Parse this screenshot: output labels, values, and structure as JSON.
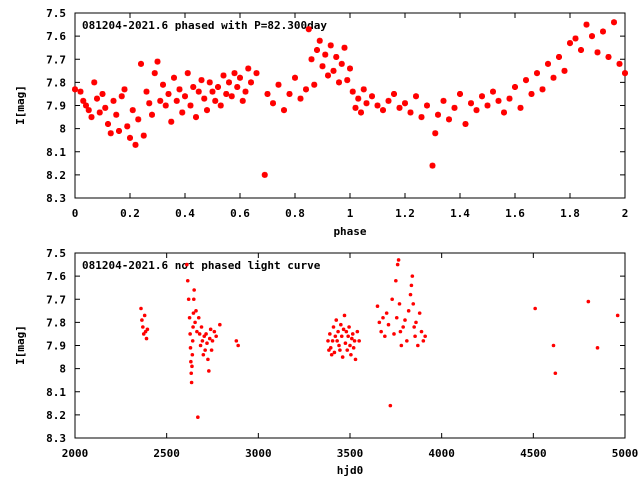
{
  "chart_data": [
    {
      "type": "scatter",
      "title": "081204-2021.6 phased with P=82.300day",
      "xlabel": "phase",
      "ylabel": "I[mag]",
      "xlim": [
        0,
        2
      ],
      "ylim": [
        8.3,
        7.5
      ],
      "y_inverted": true,
      "grid": false,
      "x_ticks": [
        "0",
        "0.2",
        "0.4",
        "0.6",
        "0.8",
        "1",
        "1.2",
        "1.4",
        "1.6",
        "1.8",
        "2"
      ],
      "y_ticks": [
        "7.5",
        "7.6",
        "7.7",
        "7.8",
        "7.9",
        "8",
        "8.1",
        "8.2",
        "8.3"
      ],
      "marker": "star",
      "series": [
        {
          "color": "#ff0000",
          "x": [
            0.0,
            0.02,
            0.03,
            0.04,
            0.05,
            0.06,
            0.07,
            0.08,
            0.09,
            0.1,
            0.11,
            0.12,
            0.13,
            0.14,
            0.15,
            0.16,
            0.17,
            0.18,
            0.19,
            0.2,
            0.21,
            0.22,
            0.23,
            0.24,
            0.25,
            0.26,
            0.27,
            0.28,
            0.29,
            0.3,
            0.31,
            0.32,
            0.33,
            0.34,
            0.35,
            0.36,
            0.37,
            0.38,
            0.39,
            0.4,
            0.41,
            0.42,
            0.43,
            0.44,
            0.45,
            0.46,
            0.47,
            0.48,
            0.49,
            0.5,
            0.51,
            0.52,
            0.53,
            0.54,
            0.55,
            0.56,
            0.57,
            0.58,
            0.59,
            0.6,
            0.61,
            0.62,
            0.63,
            0.64,
            0.66,
            0.69,
            0.7,
            0.72,
            0.74,
            0.76,
            0.78,
            0.8,
            0.82,
            0.84,
            0.85,
            0.86,
            0.87,
            0.88,
            0.89,
            0.9,
            0.91,
            0.92,
            0.93,
            0.94,
            0.95,
            0.96,
            0.97,
            0.98,
            0.99,
            1.0,
            1.01,
            1.02,
            1.03,
            1.04,
            1.05,
            1.06,
            1.08,
            1.1,
            1.12,
            1.14,
            1.16,
            1.18,
            1.2,
            1.22,
            1.24,
            1.26,
            1.28,
            1.3,
            1.31,
            1.32,
            1.34,
            1.36,
            1.38,
            1.4,
            1.42,
            1.44,
            1.46,
            1.48,
            1.5,
            1.52,
            1.54,
            1.56,
            1.58,
            1.6,
            1.62,
            1.64,
            1.66,
            1.68,
            1.7,
            1.72,
            1.74,
            1.76,
            1.78,
            1.8,
            1.82,
            1.84,
            1.86,
            1.88,
            1.9,
            1.92,
            1.94,
            1.96,
            1.98,
            2.0
          ],
          "y": [
            7.83,
            7.84,
            7.88,
            7.9,
            7.92,
            7.95,
            7.8,
            7.87,
            7.93,
            7.85,
            7.91,
            7.98,
            8.02,
            7.88,
            7.94,
            8.01,
            7.86,
            7.83,
            7.99,
            8.04,
            7.92,
            8.07,
            7.96,
            7.72,
            8.03,
            7.84,
            7.89,
            7.94,
            7.76,
            7.71,
            7.88,
            7.81,
            7.9,
            7.85,
            7.97,
            7.78,
            7.88,
            7.83,
            7.93,
            7.86,
            7.76,
            7.9,
            7.82,
            7.95,
            7.84,
            7.79,
            7.87,
            7.92,
            7.8,
            7.84,
            7.88,
            7.82,
            7.9,
            7.77,
            7.85,
            7.8,
            7.86,
            7.76,
            7.82,
            7.78,
            7.88,
            7.84,
            7.74,
            7.8,
            7.76,
            8.2,
            7.85,
            7.89,
            7.81,
            7.92,
            7.85,
            7.78,
            7.87,
            7.83,
            7.57,
            7.7,
            7.81,
            7.66,
            7.62,
            7.73,
            7.68,
            7.77,
            7.64,
            7.75,
            7.69,
            7.8,
            7.72,
            7.65,
            7.79,
            7.74,
            7.84,
            7.91,
            7.87,
            7.93,
            7.83,
            7.89,
            7.86,
            7.9,
            7.92,
            7.88,
            7.85,
            7.91,
            7.89,
            7.93,
            7.86,
            7.95,
            7.9,
            8.16,
            8.02,
            7.94,
            7.88,
            7.96,
            7.91,
            7.85,
            7.98,
            7.89,
            7.92,
            7.86,
            7.9,
            7.84,
            7.88,
            7.93,
            7.87,
            7.82,
            7.91,
            7.79,
            7.85,
            7.76,
            7.83,
            7.72,
            7.78,
            7.69,
            7.75,
            7.63,
            7.61,
            7.66,
            7.55,
            7.6,
            7.67,
            7.58,
            7.69,
            7.54,
            7.72,
            7.76
          ]
        }
      ]
    },
    {
      "type": "scatter",
      "title": "081204-2021.6 not phased light curve",
      "xlabel": "hjd0",
      "ylabel": "I[mag]",
      "xlim": [
        2000,
        5000
      ],
      "ylim": [
        8.3,
        7.5
      ],
      "y_inverted": true,
      "grid": false,
      "x_ticks": [
        "2000",
        "2500",
        "3000",
        "3500",
        "4000",
        "4500",
        "5000"
      ],
      "y_ticks": [
        "7.5",
        "7.6",
        "7.7",
        "7.8",
        "7.9",
        "8",
        "8.1",
        "8.2",
        "8.3"
      ],
      "marker": "dot",
      "series": [
        {
          "color": "#ff0000",
          "x": [
            2360,
            2365,
            2370,
            2375,
            2380,
            2385,
            2390,
            2395,
            2610,
            2615,
            2620,
            2625,
            2628,
            2630,
            2632,
            2634,
            2636,
            2638,
            2640,
            2642,
            2644,
            2646,
            2648,
            2650,
            2655,
            2660,
            2665,
            2670,
            2675,
            2680,
            2685,
            2690,
            2695,
            2700,
            2705,
            2710,
            2715,
            2720,
            2725,
            2730,
            2735,
            2740,
            2745,
            2750,
            2760,
            2770,
            2790,
            2880,
            2890,
            3380,
            3385,
            3390,
            3395,
            3400,
            3405,
            3410,
            3415,
            3420,
            3425,
            3430,
            3435,
            3440,
            3445,
            3450,
            3455,
            3460,
            3465,
            3470,
            3475,
            3480,
            3485,
            3490,
            3495,
            3500,
            3505,
            3510,
            3515,
            3520,
            3525,
            3530,
            3540,
            3550,
            3650,
            3660,
            3670,
            3680,
            3690,
            3700,
            3710,
            3720,
            3730,
            3740,
            3750,
            3755,
            3760,
            3765,
            3770,
            3775,
            3780,
            3790,
            3800,
            3810,
            3820,
            3830,
            3835,
            3840,
            3845,
            3850,
            3855,
            3860,
            3870,
            3880,
            3890,
            3900,
            3910,
            4510,
            4610,
            4620,
            4800,
            4850,
            4960
          ],
          "y": [
            7.74,
            7.79,
            7.82,
            7.85,
            7.77,
            7.84,
            7.87,
            7.83,
            7.55,
            7.62,
            7.7,
            7.78,
            7.85,
            7.91,
            7.97,
            8.02,
            8.06,
            7.99,
            7.94,
            7.88,
            7.82,
            7.76,
            7.7,
            7.66,
            7.8,
            7.75,
            7.84,
            8.21,
            7.78,
            7.85,
            7.9,
            7.82,
            7.88,
            7.94,
            7.86,
            7.92,
            7.85,
            7.89,
            7.96,
            8.01,
            7.87,
            7.83,
            7.92,
            7.88,
            7.84,
            7.86,
            7.81,
            7.88,
            7.9,
            7.88,
            7.92,
            7.85,
            7.91,
            7.94,
            7.88,
            7.82,
            7.93,
            7.86,
            7.79,
            7.88,
            7.84,
            7.9,
            7.92,
            7.81,
            7.86,
            7.95,
            7.83,
            7.77,
            7.89,
            7.84,
            7.92,
            7.86,
            7.82,
            7.9,
            7.94,
            7.87,
            7.85,
            7.91,
            7.88,
            7.96,
            7.84,
            7.88,
            7.73,
            7.8,
            7.84,
            7.78,
            7.86,
            7.76,
            7.81,
            8.16,
            7.7,
            7.85,
            7.62,
            7.78,
            7.55,
            7.53,
            7.72,
            7.84,
            7.9,
            7.82,
            7.79,
            7.88,
            7.75,
            7.68,
            7.64,
            7.6,
            7.72,
            7.82,
            7.86,
            7.8,
            7.9,
            7.76,
            7.84,
            7.88,
            7.86,
            7.74,
            7.9,
            8.02,
            7.71,
            7.91,
            7.77
          ]
        }
      ]
    }
  ]
}
